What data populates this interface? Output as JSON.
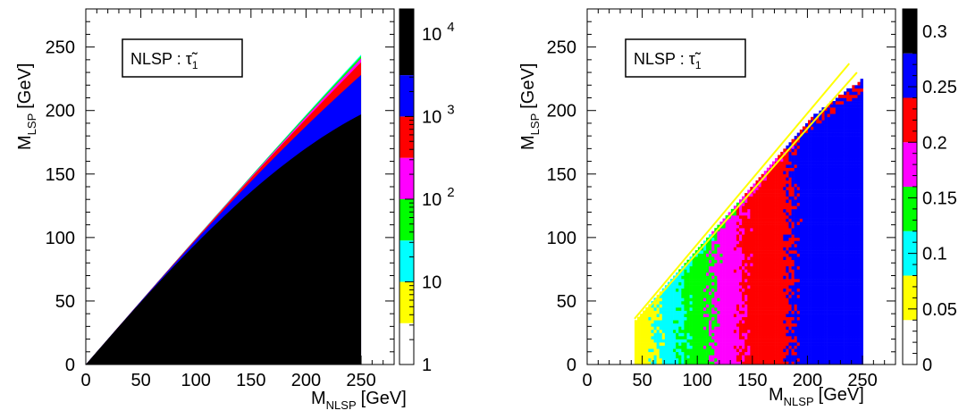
{
  "colors": {
    "palette": [
      "#ffffff",
      "#ffff00",
      "#00ffff",
      "#00ff00",
      "#ff00ff",
      "#ff0000",
      "#0000ff",
      "#000000"
    ]
  },
  "chart_data": [
    {
      "type": "heatmap",
      "xlabel": "M",
      "xlabel_sub": "NLSP",
      "xlabel_unit": "[GeV]",
      "ylabel": "M",
      "ylabel_sub": "LSP",
      "ylabel_unit": "[GeV]",
      "xlim": [
        0,
        280
      ],
      "ylim": [
        0,
        280
      ],
      "xticks": [
        "0",
        "50",
        "100",
        "150",
        "200",
        "250"
      ],
      "yticks": [
        "0",
        "50",
        "100",
        "150",
        "200",
        "250"
      ],
      "label_box": {
        "text": "NLSP : ",
        "symbol": "τ̃",
        "sub": "1"
      },
      "colorbar": {
        "scale": "log",
        "range": [
          1,
          20000
        ],
        "tick_labels": [
          {
            "base": "1",
            "exp": ""
          },
          {
            "base": "10",
            "exp": ""
          },
          {
            "base": "10",
            "exp": "2"
          },
          {
            "base": "10",
            "exp": "3"
          },
          {
            "base": "10",
            "exp": "4"
          }
        ]
      },
      "region": "triangle between M_LSP = 0 and M_LSP = M_NLSP for M_NLSP from 0 to 250 GeV",
      "bands": [
        {
          "color": "#000000",
          "level": "> 10^4",
          "upper_edge_at_250": 197
        },
        {
          "color": "#0000ff",
          "level": "10^3.5 - 10^4",
          "upper_edge_at_250": 228
        },
        {
          "color": "#ff0000",
          "level": "10^3 - 10^3.5",
          "upper_edge_at_250": 238
        },
        {
          "color": "#ff00ff",
          "level": "10^2.5 - 10^3",
          "upper_edge_at_250": 241
        },
        {
          "color": "#00ff00",
          "level": "10^2 - 10^2.5",
          "upper_edge_at_250": 243
        },
        {
          "color": "#00ffff",
          "level": "< 10^2",
          "upper_edge_at_250": 244
        }
      ]
    },
    {
      "type": "heatmap",
      "xlabel": "M",
      "xlabel_sub": "NLSP",
      "xlabel_unit": "[GeV]",
      "ylabel": "M",
      "ylabel_sub": "LSP",
      "ylabel_unit": "[GeV]",
      "xlim": [
        0,
        280
      ],
      "ylim": [
        0,
        280
      ],
      "xticks": [
        "0",
        "50",
        "100",
        "150",
        "200",
        "250"
      ],
      "yticks": [
        "0",
        "50",
        "100",
        "150",
        "200",
        "250"
      ],
      "label_box": {
        "text": "NLSP : ",
        "symbol": "τ̃",
        "sub": "1"
      },
      "colorbar": {
        "scale": "linear",
        "range": [
          0,
          0.32
        ],
        "tick_labels": [
          "0",
          "0.05",
          "0.1",
          "0.15",
          "0.2",
          "0.25",
          "0.3"
        ]
      },
      "region": "M_NLSP from 43 to 250 GeV, M_LSP below M_NLSP - 10 GeV",
      "bands_by_mnlsp": [
        {
          "color": "#ffff00",
          "mnlsp_range": [
            43,
            62
          ]
        },
        {
          "color": "#00ffff",
          "mnlsp_range": [
            62,
            85
          ]
        },
        {
          "color": "#00ff00",
          "mnlsp_range": [
            85,
            112
          ]
        },
        {
          "color": "#ff00ff",
          "mnlsp_range": [
            112,
            140
          ]
        },
        {
          "color": "#ff0000",
          "mnlsp_range": [
            140,
            185
          ]
        },
        {
          "color": "#0000ff",
          "mnlsp_range": [
            185,
            250
          ]
        }
      ]
    }
  ]
}
